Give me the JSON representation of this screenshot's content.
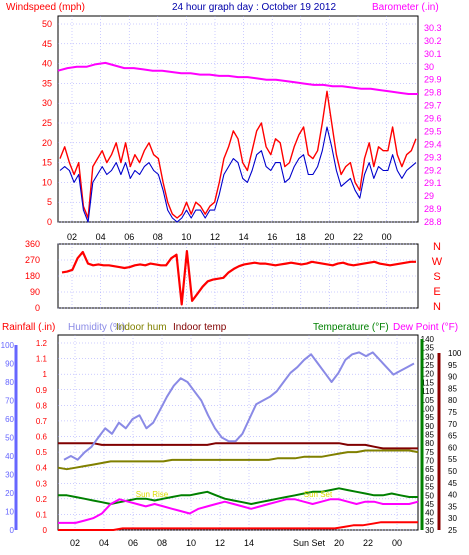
{
  "header": {
    "left_title": "Windspeed (mph)",
    "center_title": "24 hour graph day : October 19 2012",
    "right_title": "Barometer (.in)"
  },
  "colors": {
    "wind_gust": "#ff0000",
    "wind_avg": "#0000cc",
    "barometer": "#ff00ff",
    "direction": "#ff0000",
    "rainfall": "#ff0000",
    "humidity": "#8a8ae6",
    "indoor_hum": "#808000",
    "indoor_temp": "#800000",
    "temperature": "#008000",
    "dew_point": "#ff00ff",
    "grid": "#9999ff",
    "axis_left_bottom": "#6666ff",
    "axis_right_bottom": "#008000"
  },
  "chart_data": [
    {
      "type": "line",
      "x_ticks": [
        "02",
        "04",
        "06",
        "08",
        "10",
        "12",
        "14",
        "16",
        "18",
        "20",
        "22",
        "00"
      ],
      "left_axis": {
        "label": "Windspeed (mph)",
        "ticks": [
          0,
          5,
          10,
          15,
          20,
          25,
          30,
          35,
          40,
          45,
          50
        ],
        "ylim": [
          0,
          50
        ]
      },
      "right_axis": {
        "label": "Barometer (.in)",
        "ticks": [
          "28.8",
          "28.9",
          "29",
          "29.1",
          "29.2",
          "29.3",
          "29.4",
          "29.5",
          "29.6",
          "29.7",
          "29.8",
          "29.9",
          "30",
          "30.1",
          "30.2",
          "30.3"
        ],
        "ylim": [
          28.8,
          30.3
        ]
      },
      "series": [
        {
          "id": "gust",
          "values": [
            16,
            19,
            15,
            12,
            15,
            4,
            1,
            14,
            16,
            18,
            15,
            17,
            20,
            15,
            20,
            14,
            17,
            15,
            18,
            20,
            17,
            16,
            10,
            5,
            2,
            1,
            2,
            5,
            2,
            5,
            4,
            2,
            4,
            5,
            10,
            16,
            19,
            23,
            21,
            15,
            13,
            18,
            23,
            25,
            19,
            17,
            21,
            20,
            14,
            15,
            19,
            22,
            24,
            17,
            16,
            18,
            25,
            33,
            25,
            17,
            12,
            14,
            15,
            10,
            8,
            16,
            20,
            14,
            19,
            18,
            18,
            24,
            17,
            14,
            17,
            18,
            21
          ]
        },
        {
          "id": "avg",
          "values": [
            13,
            14,
            13,
            10,
            12,
            3,
            0,
            10,
            12,
            14,
            12,
            13,
            15,
            12,
            15,
            11,
            13,
            12,
            14,
            15,
            13,
            12,
            8,
            3,
            1,
            0,
            1,
            3,
            1,
            3,
            3,
            1,
            3,
            3,
            7,
            12,
            14,
            16,
            15,
            11,
            10,
            13,
            17,
            18,
            14,
            13,
            15,
            15,
            10,
            11,
            14,
            16,
            17,
            12,
            12,
            14,
            18,
            24,
            19,
            13,
            9,
            10,
            11,
            8,
            6,
            12,
            15,
            11,
            14,
            13,
            13,
            17,
            13,
            11,
            13,
            14,
            15
          ]
        },
        {
          "id": "barometer",
          "values": [
            29.97,
            29.99,
            30.0,
            30.0,
            30.02,
            30.03,
            30.01,
            29.99,
            29.99,
            29.98,
            29.97,
            29.97,
            29.96,
            29.95,
            29.95,
            29.94,
            29.94,
            29.93,
            29.93,
            29.92,
            29.92,
            29.91,
            29.9,
            29.9,
            29.89,
            29.88,
            29.87,
            29.86,
            29.86,
            29.85,
            29.85,
            29.84,
            29.83,
            29.83,
            29.82,
            29.81,
            29.8,
            29.79,
            29.79
          ]
        }
      ]
    },
    {
      "type": "line",
      "series_name": "Wind direction",
      "left_ticks": [
        0,
        90,
        180,
        270,
        360
      ],
      "right_labels": [
        "N",
        "W",
        "S",
        "E",
        "N"
      ],
      "ylim": [
        0,
        360
      ],
      "values": [
        200,
        205,
        215,
        280,
        315,
        250,
        240,
        245,
        240,
        240,
        235,
        230,
        225,
        230,
        240,
        245,
        240,
        250,
        245,
        240,
        240,
        280,
        300,
        20,
        320,
        40,
        80,
        120,
        150,
        160,
        165,
        170,
        200,
        220,
        235,
        245,
        250,
        255,
        250,
        250,
        245,
        240,
        245,
        250,
        255,
        250,
        245,
        250,
        260,
        255,
        250,
        245,
        240,
        250,
        255,
        245,
        240,
        245,
        250,
        255,
        260,
        250,
        245,
        240,
        245,
        250,
        255,
        260,
        260
      ]
    },
    {
      "type": "line",
      "headers": {
        "rainfall": "Rainfall (.in)",
        "humidity": "Humidity (%)",
        "indoor_hum": "Indoor hum",
        "indoor_temp": "Indoor temp",
        "temperature": "Temperature (°F)",
        "dew_point": "Dew Point (°F)"
      },
      "left_axis_humidity": [
        0,
        10,
        20,
        30,
        40,
        50,
        60,
        70,
        80,
        90,
        100
      ],
      "left_axis_rain": [
        "0",
        "0.1",
        "0.2",
        "0.3",
        "0.4",
        "0.5",
        "0.6",
        "0.7",
        "0.8",
        "0.9",
        "1",
        "1.1",
        "1.2"
      ],
      "right_axis_temp": [
        30,
        35,
        40,
        45,
        50,
        55,
        60,
        65,
        70,
        75,
        80,
        85,
        90,
        95,
        100,
        105,
        110,
        115,
        120,
        125,
        130,
        135,
        140
      ],
      "right_axis_dew": [
        25,
        30,
        35,
        40,
        45,
        50,
        55,
        60,
        65,
        70,
        75,
        80,
        85,
        90,
        95,
        100
      ],
      "x_labels": [
        "02",
        "04",
        "06",
        "08",
        "10",
        "12",
        "14",
        "Sun Set",
        "20",
        "22",
        "00"
      ],
      "annotations": [
        "Sun Rise",
        "Sun Set"
      ],
      "series": [
        {
          "id": "humidity",
          "values": [
            38,
            40,
            38,
            42,
            45,
            50,
            55,
            52,
            58,
            55,
            60,
            62,
            55,
            58,
            65,
            72,
            78,
            82,
            80,
            75,
            70,
            62,
            55,
            50,
            48,
            48,
            52,
            60,
            68,
            70,
            72,
            75,
            80,
            85,
            88,
            92,
            95,
            90,
            85,
            80,
            85,
            92,
            95,
            96,
            94,
            96,
            92,
            88,
            84,
            86,
            88,
            90
          ]
        },
        {
          "id": "indoor_temp",
          "values": [
            80,
            80,
            80,
            80,
            80,
            79,
            79,
            79,
            79,
            79,
            79,
            79,
            79,
            79,
            79,
            79,
            79,
            79,
            80,
            80,
            80,
            80,
            80,
            80,
            80,
            80,
            80,
            80,
            80,
            80,
            80,
            80,
            80,
            79,
            79,
            79,
            78,
            77,
            77,
            77,
            77,
            77
          ]
        },
        {
          "id": "indoor_hum",
          "values": [
            0.4,
            0.39,
            0.4,
            0.41,
            0.42,
            0.43,
            0.44,
            0.44,
            0.44,
            0.44,
            0.44,
            0.44,
            0.44,
            0.45,
            0.45,
            0.45,
            0.45,
            0.45,
            0.45,
            0.45,
            0.45,
            0.45,
            0.45,
            0.45,
            0.45,
            0.46,
            0.46,
            0.46,
            0.47,
            0.47,
            0.47,
            0.48,
            0.49,
            0.5,
            0.5,
            0.51,
            0.51,
            0.51,
            0.51,
            0.51,
            0.51,
            0.5
          ]
        },
        {
          "id": "temperature",
          "values": [
            50,
            50,
            49,
            48,
            47,
            46,
            45,
            46,
            47,
            48,
            48,
            47,
            48,
            49,
            50,
            50,
            51,
            52,
            50,
            48,
            47,
            46,
            45,
            46,
            47,
            48,
            49,
            50,
            51,
            52,
            52,
            53,
            54,
            53,
            52,
            51,
            50,
            50,
            51,
            50,
            49,
            49
          ]
        },
        {
          "id": "dew_point",
          "values": [
            28,
            28,
            28,
            29,
            30,
            32,
            36,
            38,
            37,
            36,
            35,
            36,
            35,
            34,
            33,
            32,
            34,
            35,
            36,
            37,
            36,
            35,
            34,
            35,
            36,
            37,
            38,
            38,
            37,
            36,
            37,
            38,
            38,
            37,
            36,
            37,
            37,
            36,
            36,
            36,
            36,
            37
          ]
        },
        {
          "id": "rainfall",
          "values": [
            0,
            0,
            0,
            0,
            0,
            0,
            0,
            0.01,
            0.01,
            0.01,
            0.01,
            0.01,
            0.01,
            0.01,
            0.01,
            0.01,
            0.01,
            0.01,
            0.01,
            0.01,
            0.01,
            0.01,
            0.01,
            0.01,
            0.01,
            0.01,
            0.01,
            0.01,
            0.01,
            0.01,
            0.01,
            0.02,
            0.03,
            0.03,
            0.04,
            0.05,
            0.05,
            0.05,
            0.05,
            0.05
          ]
        }
      ]
    }
  ]
}
